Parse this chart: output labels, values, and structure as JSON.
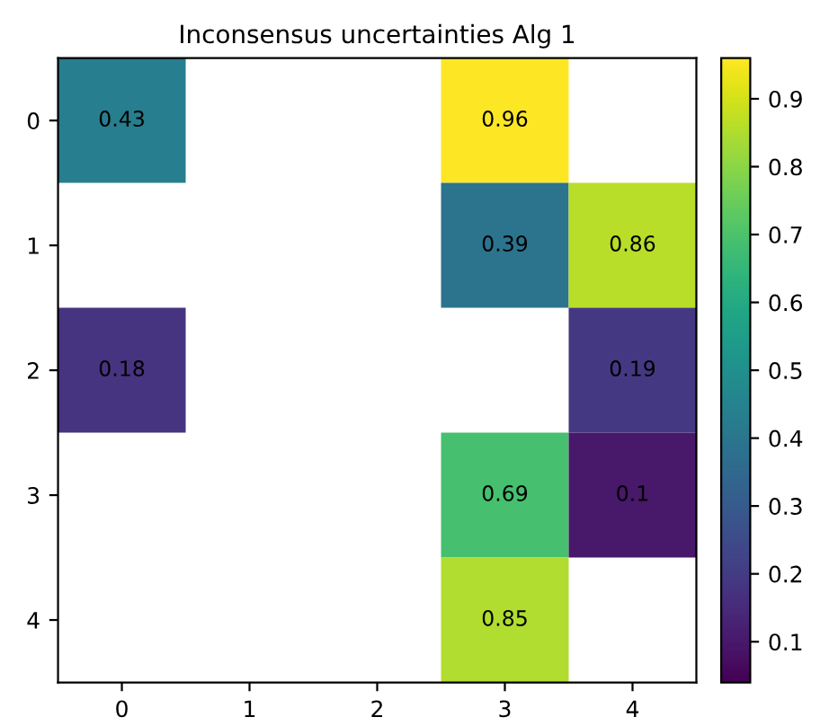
{
  "chart_data": {
    "type": "heatmap",
    "title": "Inconsensus uncertainties Alg 1",
    "categories": [
      "0",
      "1",
      "2",
      "3",
      "4"
    ],
    "y_categories": [
      "0",
      "1",
      "2",
      "3",
      "4"
    ],
    "cells": [
      [
        0.43,
        null,
        null,
        0.96,
        null
      ],
      [
        null,
        null,
        null,
        0.39,
        0.86
      ],
      [
        0.18,
        null,
        null,
        null,
        0.19
      ],
      [
        null,
        null,
        null,
        0.69,
        0.1
      ],
      [
        null,
        null,
        null,
        0.85,
        null
      ]
    ],
    "clim": [
      0.04,
      0.96
    ],
    "cticks": [
      0.1,
      0.2,
      0.3,
      0.4,
      0.5,
      0.6,
      0.7,
      0.8,
      0.9
    ],
    "data_labels": true
  }
}
